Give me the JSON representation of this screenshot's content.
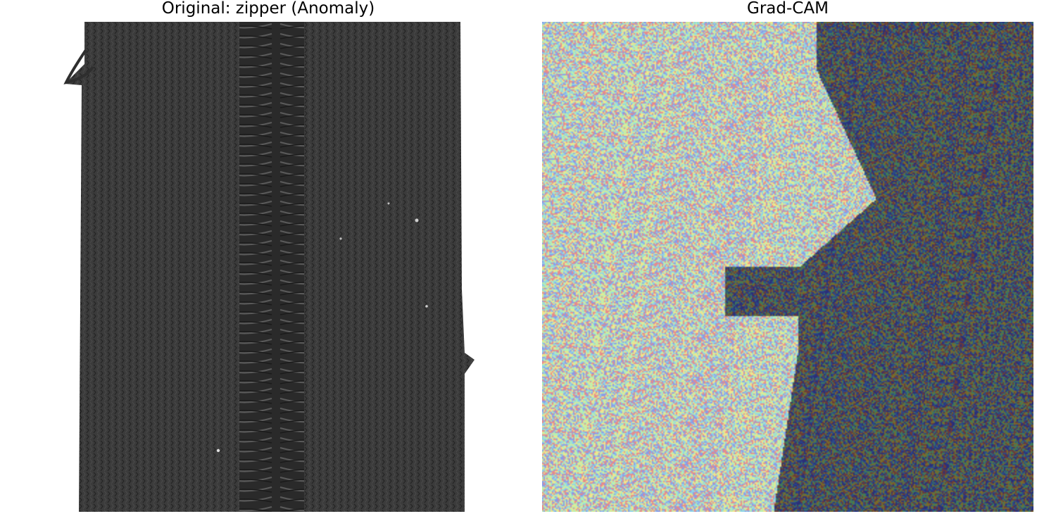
{
  "figure": {
    "left_panel": {
      "title": "Original: zipper (Anomaly)",
      "image_description_icon": "zipper-photo",
      "colors": {
        "fabric": "#3a3a3a",
        "teeth": "#2b2b2b",
        "background": "#ffffff"
      }
    },
    "right_panel": {
      "title": "Grad-CAM",
      "image_description_icon": "gradcam-heatmap-overlay",
      "colors": {
        "hot_region_palette": [
          "#f0e68c",
          "#8fd3e8",
          "#e88a8a",
          "#8a9be8",
          "#b8f0b0"
        ],
        "cold_region_palette": [
          "#2b2f7a",
          "#3f7a5a",
          "#7a6a2a",
          "#2a4a8a",
          "#6a3a3a"
        ]
      }
    }
  }
}
